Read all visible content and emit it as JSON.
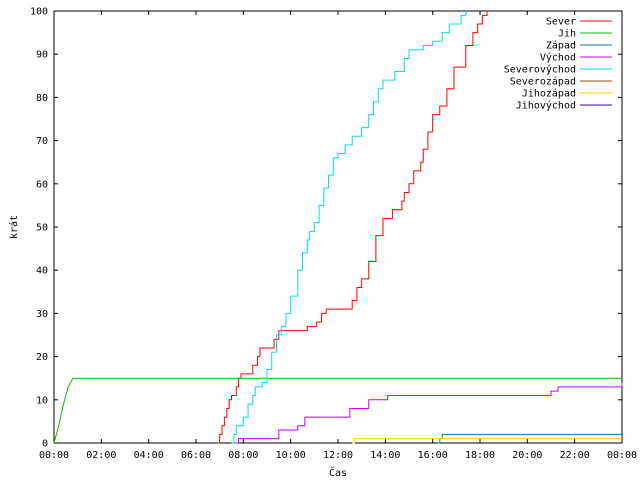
{
  "chart_data": {
    "type": "line",
    "title": "",
    "xlabel": "Čas",
    "ylabel": "krát",
    "xlim": [
      0,
      24
    ],
    "ylim": [
      0,
      100
    ],
    "x_ticks": [
      {
        "value": 0,
        "label": "00:00"
      },
      {
        "value": 2,
        "label": "02:00"
      },
      {
        "value": 4,
        "label": "04:00"
      },
      {
        "value": 6,
        "label": "06:00"
      },
      {
        "value": 8,
        "label": "08:00"
      },
      {
        "value": 10,
        "label": "10:00"
      },
      {
        "value": 12,
        "label": "12:00"
      },
      {
        "value": 14,
        "label": "14:00"
      },
      {
        "value": 16,
        "label": "16:00"
      },
      {
        "value": 18,
        "label": "18:00"
      },
      {
        "value": 20,
        "label": "20:00"
      },
      {
        "value": 22,
        "label": "22:00"
      },
      {
        "value": 24,
        "label": "00:00"
      }
    ],
    "y_ticks": [
      0,
      10,
      20,
      30,
      40,
      50,
      60,
      70,
      80,
      90,
      100
    ],
    "grid": false,
    "legend_position": "top-right",
    "series": [
      {
        "name": "Sever",
        "color": "#ff0000",
        "step": true,
        "points": [
          [
            6.9,
            0
          ],
          [
            7.0,
            2
          ],
          [
            7.1,
            4
          ],
          [
            7.2,
            6
          ],
          [
            7.3,
            8
          ],
          [
            7.4,
            10
          ],
          [
            7.5,
            11
          ],
          [
            7.7,
            13
          ],
          [
            7.8,
            15
          ],
          [
            7.9,
            16
          ],
          [
            8.2,
            16
          ],
          [
            8.4,
            18
          ],
          [
            8.6,
            20
          ],
          [
            8.7,
            22
          ],
          [
            9.1,
            22
          ],
          [
            9.3,
            24
          ],
          [
            9.5,
            26
          ],
          [
            10.7,
            27
          ],
          [
            11.1,
            28
          ],
          [
            11.3,
            30
          ],
          [
            11.5,
            31
          ],
          [
            12.6,
            33
          ],
          [
            12.8,
            36
          ],
          [
            13.0,
            38
          ],
          [
            13.3,
            42
          ],
          [
            13.6,
            48
          ],
          [
            13.9,
            52
          ],
          [
            14.2,
            52
          ],
          [
            14.3,
            54
          ],
          [
            14.7,
            56
          ],
          [
            14.8,
            58
          ],
          [
            15.0,
            60
          ],
          [
            15.2,
            63
          ],
          [
            15.5,
            65
          ],
          [
            15.6,
            68
          ],
          [
            15.8,
            72
          ],
          [
            16.0,
            76
          ],
          [
            16.3,
            78
          ],
          [
            16.6,
            82
          ],
          [
            16.9,
            87
          ],
          [
            17.2,
            87
          ],
          [
            17.4,
            92
          ],
          [
            17.7,
            95
          ],
          [
            17.9,
            97
          ],
          [
            18.1,
            99
          ],
          [
            18.3,
            100
          ]
        ]
      },
      {
        "name": "Jih",
        "color": "#00c000",
        "step": false,
        "points": [
          [
            0,
            0
          ],
          [
            0.2,
            4
          ],
          [
            0.4,
            9
          ],
          [
            0.6,
            13
          ],
          [
            0.8,
            15
          ],
          [
            24,
            15
          ]
        ]
      },
      {
        "name": "Západ",
        "color": "#0080a0",
        "step": true,
        "points": [
          [
            16.2,
            0
          ],
          [
            16.3,
            1
          ],
          [
            16.4,
            2
          ],
          [
            24,
            2
          ]
        ]
      },
      {
        "name": "Východ",
        "color": "#c000ff",
        "step": true,
        "points": [
          [
            7.6,
            0
          ],
          [
            7.8,
            1
          ],
          [
            9.3,
            1
          ],
          [
            9.5,
            3
          ],
          [
            10.3,
            4
          ],
          [
            10.6,
            6
          ],
          [
            11.0,
            6
          ],
          [
            12.5,
            8
          ],
          [
            13.3,
            10
          ],
          [
            14.1,
            11
          ],
          [
            21.0,
            12
          ],
          [
            21.3,
            13
          ],
          [
            24,
            14
          ]
        ]
      },
      {
        "name": "Severovýchod",
        "color": "#00e0e0",
        "step": true,
        "points": [
          [
            7.5,
            0
          ],
          [
            7.6,
            2
          ],
          [
            7.7,
            4
          ],
          [
            8.0,
            6
          ],
          [
            8.2,
            9
          ],
          [
            8.4,
            11
          ],
          [
            8.5,
            13
          ],
          [
            8.8,
            14
          ],
          [
            9.0,
            17
          ],
          [
            9.2,
            21
          ],
          [
            9.4,
            25
          ],
          [
            9.6,
            27
          ],
          [
            9.8,
            30
          ],
          [
            10.0,
            34
          ],
          [
            10.3,
            40
          ],
          [
            10.5,
            44
          ],
          [
            10.7,
            47
          ],
          [
            10.8,
            49
          ],
          [
            11.0,
            51
          ],
          [
            11.2,
            55
          ],
          [
            11.4,
            59
          ],
          [
            11.6,
            62
          ],
          [
            11.8,
            66
          ],
          [
            12.0,
            67
          ],
          [
            12.3,
            69
          ],
          [
            12.6,
            71
          ],
          [
            13.0,
            73
          ],
          [
            13.3,
            76
          ],
          [
            13.5,
            79
          ],
          [
            13.7,
            82
          ],
          [
            13.9,
            84
          ],
          [
            14.4,
            86
          ],
          [
            14.8,
            89
          ],
          [
            15.0,
            91
          ],
          [
            15.6,
            92
          ],
          [
            16.0,
            93
          ],
          [
            16.4,
            95
          ],
          [
            16.7,
            97
          ],
          [
            17.2,
            99
          ],
          [
            17.4,
            100
          ]
        ]
      },
      {
        "name": "Severozápad",
        "color": "#a04000",
        "step": true,
        "points": []
      },
      {
        "name": "Jihozápad",
        "color": "#ffd000",
        "step": true,
        "points": [
          [
            12.6,
            0
          ],
          [
            12.7,
            1
          ],
          [
            24,
            1
          ]
        ]
      },
      {
        "name": "Jihovýchod",
        "color": "#4000a0",
        "step": true,
        "points": []
      }
    ]
  }
}
